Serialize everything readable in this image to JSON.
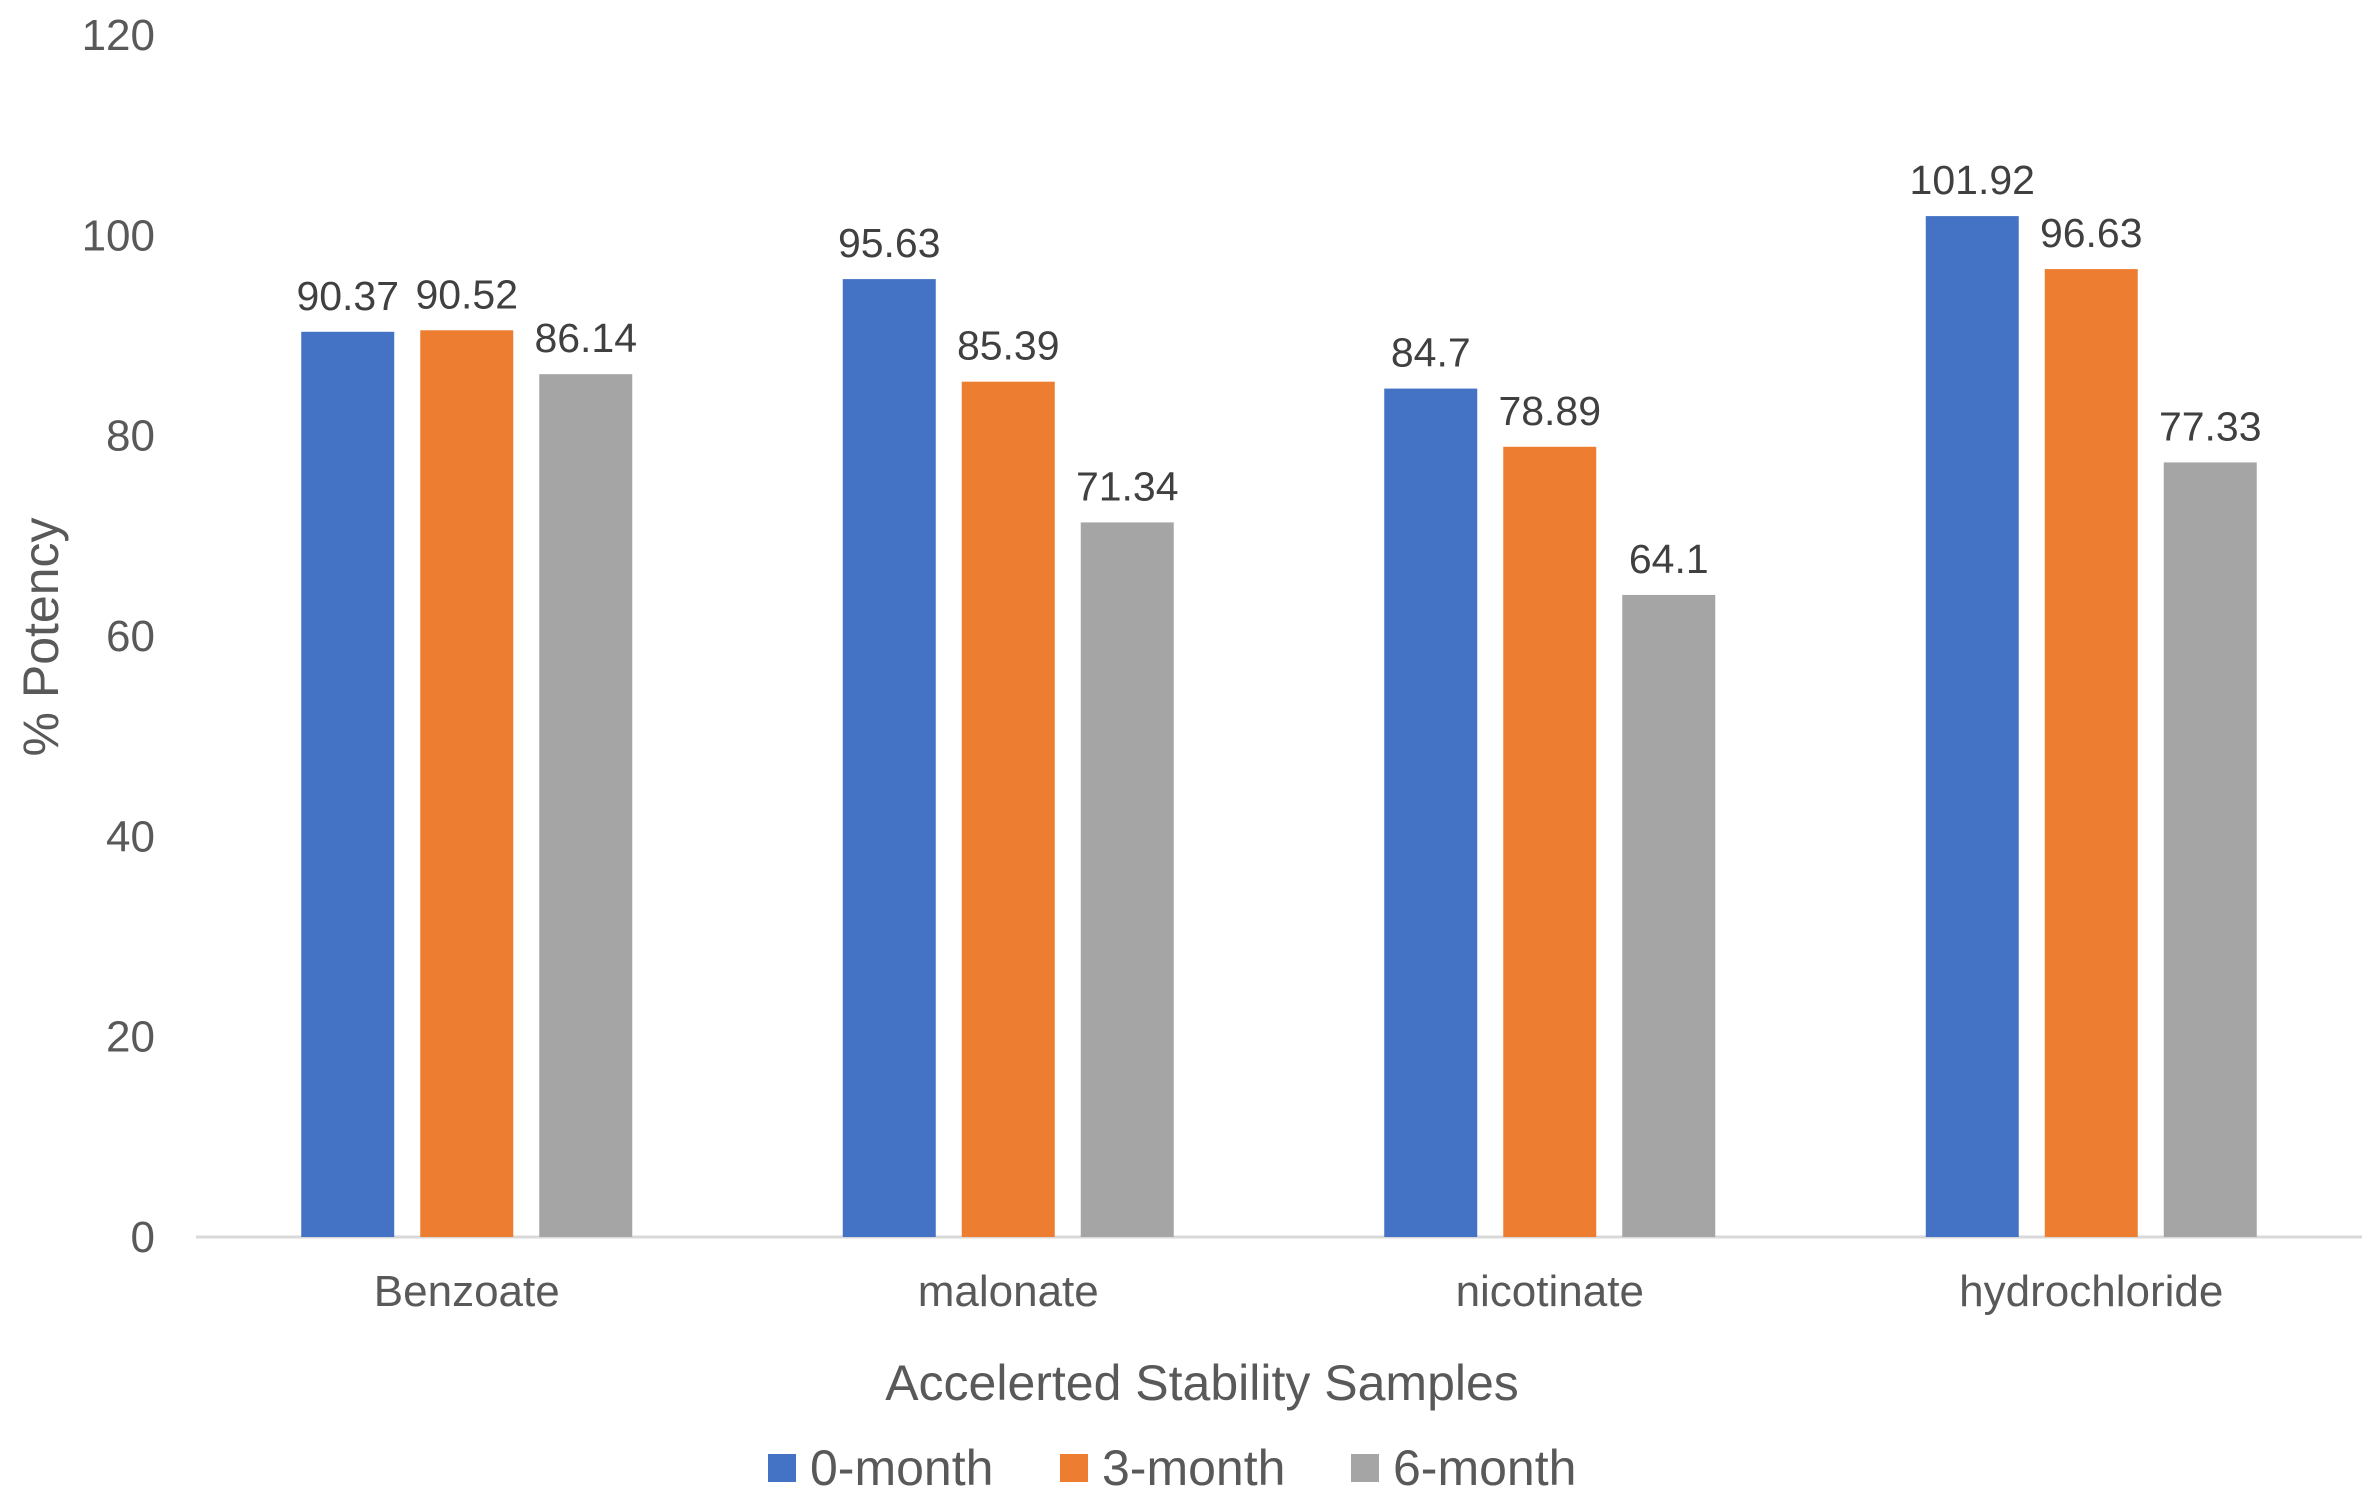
{
  "chart_data": {
    "type": "bar",
    "categories": [
      "Benzoate",
      "malonate",
      "nicotinate",
      "hydrochloride"
    ],
    "series": [
      {
        "name": "0-month",
        "values": [
          90.37,
          95.63,
          84.7,
          101.92
        ],
        "color": "#4472C4"
      },
      {
        "name": "3-month",
        "values": [
          90.52,
          85.39,
          78.89,
          96.63
        ],
        "color": "#ED7D31"
      },
      {
        "name": "6-month",
        "values": [
          86.14,
          71.34,
          64.1,
          77.33
        ],
        "color": "#A5A5A5"
      }
    ],
    "data_labels": [
      [
        "90.37",
        "95.63",
        "84.7",
        "101.92"
      ],
      [
        "90.52",
        "85.39",
        "78.89",
        "96.63"
      ],
      [
        "86.14",
        "71.34",
        "64.1",
        "77.33"
      ]
    ],
    "title": "",
    "xlabel": "Accelerted Stability Samples",
    "ylabel": "% Potency",
    "ylim": [
      0,
      120
    ],
    "yticks": [
      0,
      20,
      40,
      60,
      80,
      100,
      120
    ],
    "grid": false,
    "legend_position": "bottom"
  }
}
